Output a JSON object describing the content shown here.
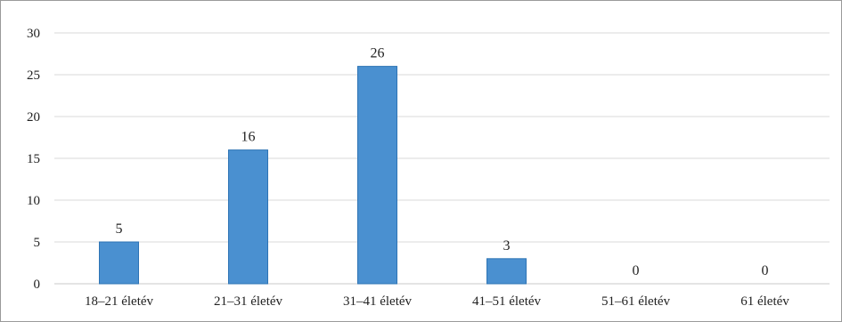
{
  "chart_data": {
    "type": "bar",
    "categories": [
      "18–21 életév",
      "21–31 életév",
      "31–41 életév",
      "41–51 életév",
      "51–61 életév",
      "61 életév"
    ],
    "values": [
      5,
      16,
      26,
      3,
      0,
      0
    ],
    "data_labels": [
      "5",
      "16",
      "26",
      "3",
      "0",
      "0"
    ],
    "y_ticks": [
      "0",
      "5",
      "10",
      "15",
      "20",
      "25",
      "30"
    ],
    "ylim": [
      0,
      30
    ],
    "y_step": 5,
    "grid": true,
    "legend": "none",
    "bar_color": "#4a90d0",
    "bar_edge_color": "#2e74b5"
  }
}
